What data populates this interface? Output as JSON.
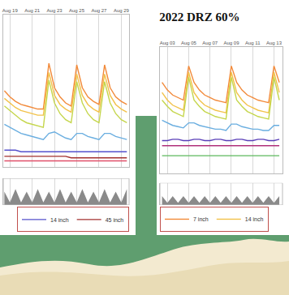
{
  "chart_data": [
    {
      "type": "line",
      "x": [
        18.5,
        19,
        19.5,
        20,
        20.5,
        21,
        21.5,
        22,
        22.5,
        23,
        23.5,
        24,
        24.5,
        25,
        25.5,
        26,
        26.5,
        27,
        27.5,
        28,
        28.5,
        29,
        29.5
      ],
      "series": [
        {
          "color": "#f28a3a",
          "values": [
            50,
            46,
            43,
            41,
            40,
            39,
            38,
            38,
            68,
            52,
            46,
            42,
            40,
            67,
            52,
            46,
            43,
            41,
            67,
            52,
            46,
            43,
            41
          ]
        },
        {
          "color": "#f2c24a",
          "values": [
            45,
            42,
            39,
            37,
            36,
            35,
            34,
            34,
            62,
            47,
            41,
            38,
            36,
            61,
            47,
            41,
            38,
            36,
            61,
            47,
            41,
            38,
            36
          ]
        },
        {
          "color": "#c5d64c",
          "values": [
            40,
            37,
            34,
            31,
            29,
            28,
            27,
            26,
            57,
            42,
            35,
            31,
            29,
            56,
            42,
            35,
            31,
            29,
            56,
            42,
            35,
            31,
            29
          ]
        },
        {
          "color": "#6aaee0",
          "values": [
            28,
            26,
            24,
            22,
            21,
            20,
            19,
            18,
            22,
            23,
            21,
            19,
            18,
            22,
            22,
            20,
            19,
            18,
            22,
            22,
            20,
            19,
            18
          ]
        },
        {
          "name": "14 inch",
          "color": "#5550cc",
          "values": [
            11,
            11,
            11,
            10,
            10,
            10,
            10,
            10,
            10,
            10,
            10,
            10,
            10,
            10,
            10,
            10,
            10,
            10,
            10,
            10,
            10,
            10,
            10
          ]
        },
        {
          "name": "45 inch",
          "color": "#a3302f",
          "values": [
            7,
            7,
            7,
            7,
            7,
            7,
            7,
            7,
            7,
            7,
            7,
            7,
            6,
            6,
            6,
            6,
            6,
            6,
            6,
            6,
            6,
            6,
            6
          ]
        },
        {
          "color": "#e0506a",
          "values": [
            4,
            4,
            4,
            4,
            4,
            4,
            4,
            4,
            4,
            4,
            4,
            4,
            4,
            4,
            4,
            4,
            4,
            4,
            4,
            4,
            4,
            4,
            4
          ]
        },
        {
          "type": "area",
          "axis": "y2",
          "color": "#8a8a8a",
          "values": [
            5,
            1,
            6,
            1,
            5,
            1,
            6,
            1,
            5,
            1,
            6,
            1,
            5,
            1,
            6,
            1,
            5,
            1,
            6,
            1,
            5,
            1,
            6
          ]
        }
      ],
      "xlim": [
        18.4,
        29.7
      ],
      "xticks": [
        {
          "value": 19,
          "label": "Aug 19"
        },
        {
          "value": 21,
          "label": "Aug 21"
        },
        {
          "value": 23,
          "label": "Aug 23"
        },
        {
          "value": 25,
          "label": "Aug 25"
        },
        {
          "value": 27,
          "label": "Aug 27"
        },
        {
          "value": 29,
          "label": "Aug 29"
        }
      ],
      "ylim": [
        0,
        100
      ],
      "y2lim": [
        0,
        10
      ],
      "grid": true,
      "tick_labels": "x",
      "legend": "bottom right"
    },
    {
      "type": "line",
      "title": "2022 DRZ 60%",
      "x": [
        2.5,
        3,
        3.5,
        4,
        4.5,
        5,
        5.5,
        6,
        6.5,
        7,
        7.5,
        8,
        8.5,
        9,
        9.5,
        10,
        10.5,
        11,
        11.5,
        12,
        12.5,
        13,
        13.5
      ],
      "series": [
        {
          "name": "7 inch",
          "color": "#f28a3a",
          "values": [
            72,
            66,
            62,
            60,
            58,
            85,
            72,
            66,
            62,
            60,
            58,
            57,
            56,
            85,
            72,
            66,
            62,
            60,
            58,
            57,
            56,
            85,
            72
          ]
        },
        {
          "name": "14 inch",
          "color": "#f2c24a",
          "values": [
            64,
            58,
            54,
            52,
            50,
            80,
            64,
            58,
            54,
            52,
            50,
            49,
            48,
            80,
            64,
            58,
            54,
            52,
            50,
            49,
            48,
            80,
            64
          ]
        },
        {
          "color": "#c5d64c",
          "values": [
            58,
            53,
            49,
            47,
            45,
            76,
            58,
            53,
            49,
            47,
            45,
            44,
            43,
            76,
            58,
            53,
            49,
            47,
            45,
            44,
            43,
            76,
            58
          ]
        },
        {
          "color": "#6aaee0",
          "values": [
            42,
            40,
            38,
            37,
            36,
            40,
            40,
            38,
            37,
            36,
            35,
            35,
            34,
            39,
            39,
            37,
            36,
            35,
            35,
            34,
            34,
            38,
            38
          ]
        },
        {
          "color": "#5a3fb8",
          "values": [
            26,
            26,
            27,
            27,
            26,
            26,
            27,
            27,
            26,
            26,
            27,
            27,
            26,
            26,
            27,
            27,
            26,
            26,
            27,
            27,
            26,
            26,
            27
          ]
        },
        {
          "color": "#b0307a",
          "values": [
            22,
            22,
            22,
            22,
            22,
            22,
            22,
            22,
            22,
            22,
            22,
            22,
            22,
            22,
            22,
            22,
            22,
            22,
            22,
            22,
            22,
            22,
            22
          ]
        },
        {
          "color": "#5cb85c",
          "values": [
            14,
            14,
            14,
            14,
            14,
            14,
            14,
            14,
            14,
            14,
            14,
            14,
            14,
            14,
            14,
            14,
            14,
            14,
            14,
            14,
            14,
            14,
            14
          ]
        },
        {
          "type": "area",
          "axis": "y2",
          "color": "#8a8a8a",
          "values": [
            4,
            1,
            4,
            1,
            4,
            1,
            4,
            1,
            4,
            1,
            4,
            1,
            4,
            1,
            4,
            1,
            4,
            1,
            4,
            1,
            4,
            1,
            4
          ]
        }
      ],
      "xlim": [
        2.3,
        13.8
      ],
      "xticks": [
        {
          "value": 3,
          "label": "Aug 03"
        },
        {
          "value": 5,
          "label": "Aug 05"
        },
        {
          "value": 7,
          "label": "Aug 07"
        },
        {
          "value": 9,
          "label": "Aug 09"
        },
        {
          "value": 11,
          "label": "Aug 11"
        },
        {
          "value": 13,
          "label": "Aug 13"
        }
      ],
      "ylim": [
        0,
        100
      ],
      "y2lim": [
        0,
        10
      ],
      "grid": true,
      "tick_labels": "x",
      "legend": "bottom left"
    }
  ]
}
